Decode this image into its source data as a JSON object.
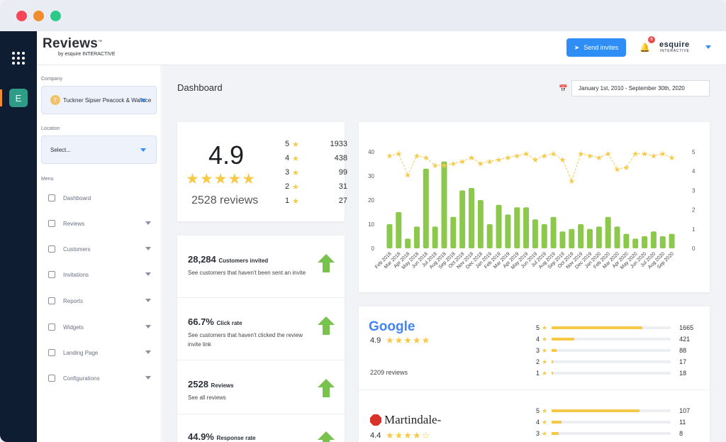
{
  "rail": {
    "app_initial": "E"
  },
  "header": {
    "logo": "Reviews",
    "logo_tm": "™",
    "logo_by": "by esquire INTERACTIVE",
    "send_label": "Send invites",
    "notifications": "6",
    "brand": "esquire",
    "brand_sub": "INTERACTIVE"
  },
  "sidebar": {
    "company_label": "Company",
    "company_value": "Tuckner Sipser Peacock & Wallace",
    "company_initial": "T",
    "location_label": "Location",
    "location_value": "Select...",
    "menu_label": "Menu",
    "items": [
      {
        "label": "Dashboard"
      },
      {
        "label": "Reviews"
      },
      {
        "label": "Customers"
      },
      {
        "label": "Invitations"
      },
      {
        "label": "Reports"
      },
      {
        "label": "Widgets"
      },
      {
        "label": "Landing Page"
      },
      {
        "label": "Configurations"
      }
    ]
  },
  "main": {
    "title": "Dashboard",
    "date_range": "January 1st, 2010 - September 30th, 2020"
  },
  "rating": {
    "score": "4.9",
    "stars": "★★★★★",
    "reviews": "2528 reviews",
    "dist": [
      {
        "star": "5",
        "count": "1933"
      },
      {
        "star": "4",
        "count": "438"
      },
      {
        "star": "3",
        "count": "99"
      },
      {
        "star": "2",
        "count": "31"
      },
      {
        "star": "1",
        "count": "27"
      }
    ]
  },
  "stats": [
    {
      "value": "28,284",
      "label": "Customers invited",
      "desc": "See customers that haven't been sent an invite"
    },
    {
      "value": "66.7%",
      "label": "Click rate",
      "desc": "See customers that haven't clicked the review invite link"
    },
    {
      "value": "2528",
      "label": "Reviews",
      "desc": "See all reviews"
    },
    {
      "value": "44.9%",
      "label": "Response rate",
      "desc": ""
    }
  ],
  "chart_data": {
    "type": "bar",
    "categories": [
      "Feb 2018",
      "Mar 2018",
      "Apr 2018",
      "May 2018",
      "Jun 2018",
      "Jul 2018",
      "Aug 2018",
      "Sep 2018",
      "Oct 2018",
      "Nov 2018",
      "Dec 2018",
      "Jan 2019",
      "Feb 2019",
      "Mar 2019",
      "Apr 2019",
      "May 2019",
      "Jun 2019",
      "Jul 2019",
      "Aug 2019",
      "Sep 2019",
      "Oct 2019",
      "Nov 2019",
      "Dec 2019",
      "Jan 2020",
      "Feb 2020",
      "Mar 2020",
      "Apr 2020",
      "May 2020",
      "Jun 2020",
      "Jul 2020",
      "Aug 2020",
      "Sep 2020"
    ],
    "series": [
      {
        "values": [
          10,
          15,
          4,
          9,
          33,
          9,
          36,
          13,
          24,
          25,
          20,
          10,
          18,
          14,
          17,
          17,
          12,
          10,
          13,
          7,
          8,
          10,
          8,
          9,
          13,
          9,
          6,
          4,
          5,
          7,
          5,
          6
        ]
      },
      {
        "values": [
          4.8,
          4.9,
          3.8,
          4.8,
          4.7,
          4.3,
          4.3,
          4.4,
          4.5,
          4.7,
          4.4,
          4.5,
          4.6,
          4.7,
          4.8,
          4.9,
          4.6,
          4.8,
          4.9,
          4.6,
          3.5,
          4.9,
          4.8,
          4.7,
          4.9,
          4.1,
          4.2,
          4.9,
          4.9,
          4.8,
          4.9,
          4.7
        ]
      }
    ],
    "ylim_left": [
      0,
      40
    ],
    "yticks_left": [
      "0",
      "10",
      "20",
      "30",
      "40"
    ],
    "ylim_right": [
      0,
      5
    ],
    "yticks_right": [
      "0",
      "1",
      "2",
      "3",
      "4",
      "5"
    ],
    "colors": {
      "bars": "#8cc84b",
      "line": "#f7c948"
    }
  },
  "platforms": [
    {
      "name": "Google",
      "score": "4.9",
      "stars": "★★★★★",
      "reviews": "2209 reviews",
      "rows": [
        {
          "star": "5",
          "count": "1665",
          "frac": 0.76
        },
        {
          "star": "4",
          "count": "421",
          "frac": 0.19
        },
        {
          "star": "3",
          "count": "88",
          "frac": 0.04
        },
        {
          "star": "2",
          "count": "17",
          "frac": 0.01
        },
        {
          "star": "1",
          "count": "18",
          "frac": 0.01
        }
      ]
    },
    {
      "name": "Martindale-",
      "score": "4.4",
      "stars": "★★★★☆",
      "rows": [
        {
          "star": "5",
          "count": "107",
          "frac": 0.74
        },
        {
          "star": "4",
          "count": "11",
          "frac": 0.08
        },
        {
          "star": "3",
          "count": "8",
          "frac": 0.06
        }
      ]
    }
  ]
}
